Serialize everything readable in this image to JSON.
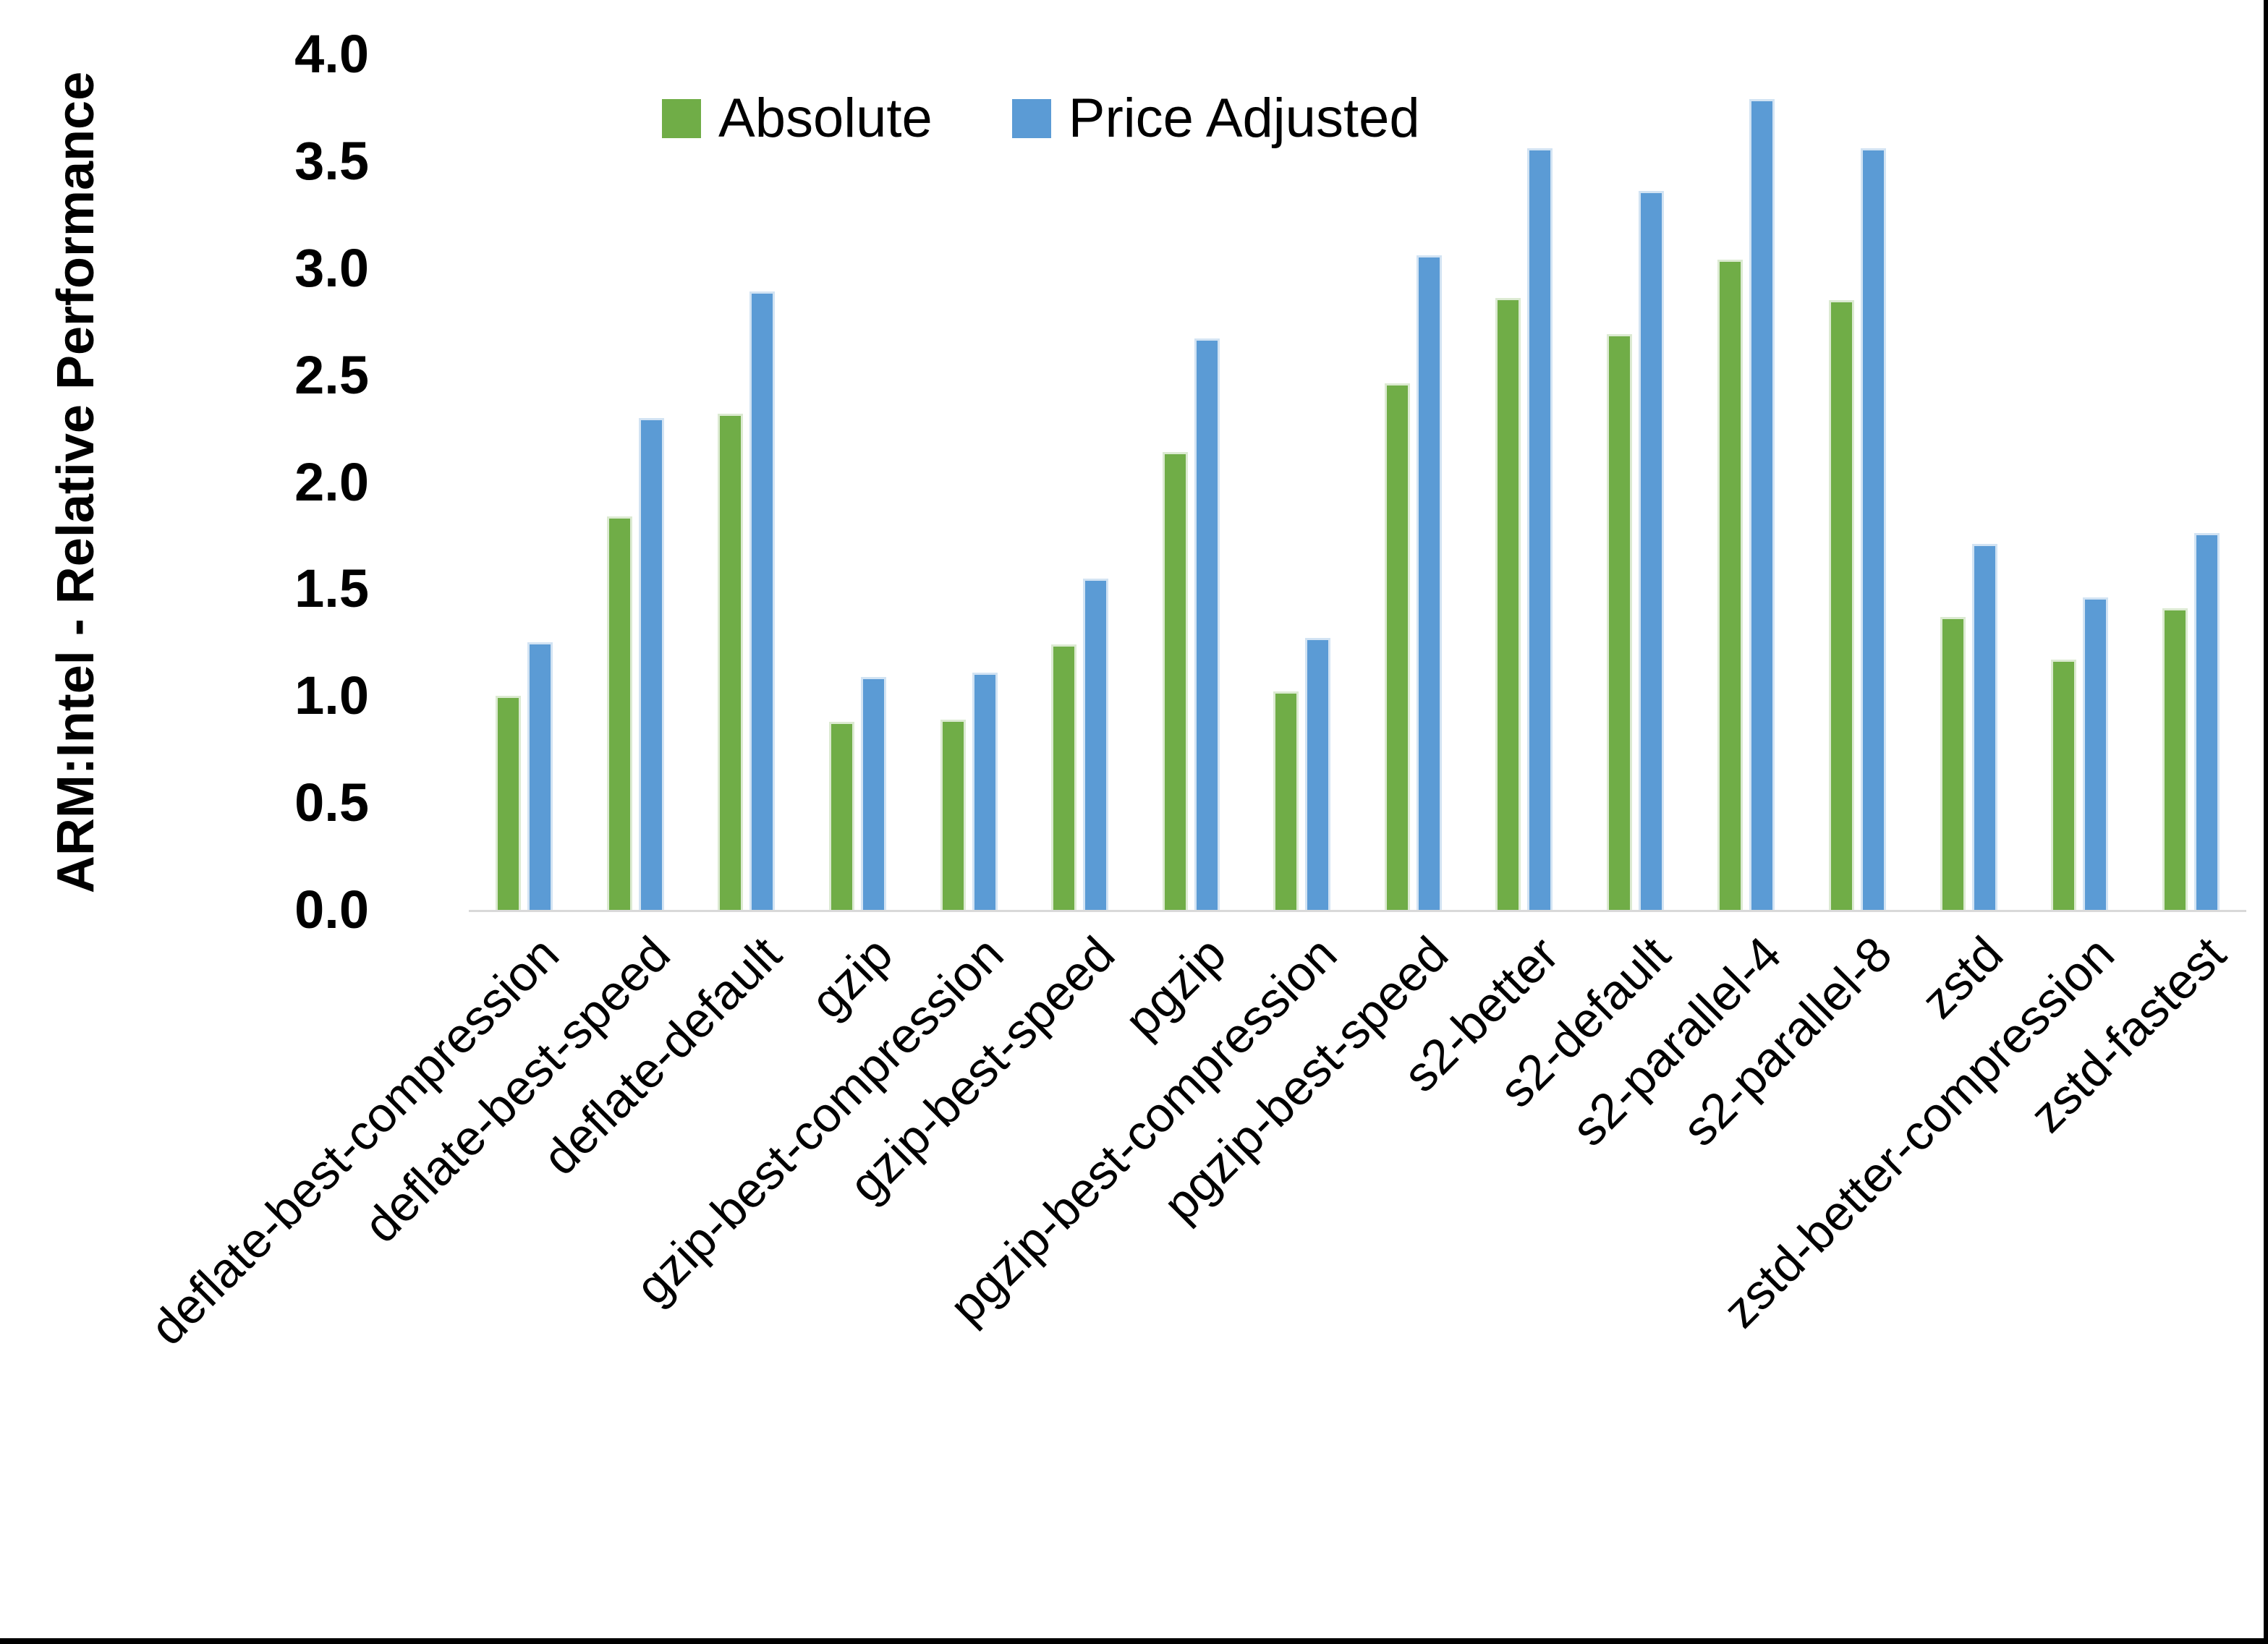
{
  "figure": {
    "background": "#ffffff",
    "frame_border_color": "#000000",
    "axis_line_color": "#d9d9d9",
    "y_axis_title": "ARM:Intel - Relative Performance"
  },
  "legend": {
    "position": "top-center",
    "items": [
      {
        "label": "Absolute",
        "color": "#70AD47"
      },
      {
        "label": "Price Adjusted",
        "color": "#5B9BD5"
      }
    ]
  },
  "chart_data": {
    "type": "bar",
    "title": "",
    "xlabel": "",
    "ylabel": "ARM:Intel - Relative Performance",
    "ylim": [
      0,
      4.0
    ],
    "ytick_step": 0.5,
    "yticks": [
      "0.0",
      "0.5",
      "1.0",
      "1.5",
      "2.0",
      "2.5",
      "3.0",
      "3.5",
      "4.0"
    ],
    "grid": false,
    "legend_position": "top-center",
    "categories": [
      "deflate-best-compression",
      "deflate-best-speed",
      "deflate-default",
      "gzip",
      "gzip-best-compression",
      "gzip-best-speed",
      "pgzip",
      "pgzip-best-compression",
      "pgzip-best-speed",
      "s2-better",
      "s2-default",
      "s2-parallel-4",
      "s2-parallel-8",
      "zstd",
      "zstd-better-compression",
      "zstd-fastest"
    ],
    "series": [
      {
        "name": "Absolute",
        "color": "#70AD47",
        "edge_color": "#dcead2",
        "values": [
          1.0,
          1.84,
          2.32,
          0.88,
          0.89,
          1.24,
          2.14,
          1.02,
          2.46,
          2.86,
          2.69,
          3.04,
          2.85,
          1.37,
          1.17,
          1.41
        ]
      },
      {
        "name": "Price Adjusted",
        "color": "#5B9BD5",
        "edge_color": "#d2e3f3",
        "values": [
          1.25,
          2.3,
          2.89,
          1.09,
          1.11,
          1.55,
          2.67,
          1.27,
          3.06,
          3.56,
          3.36,
          3.79,
          3.56,
          1.71,
          1.46,
          1.76
        ]
      }
    ]
  }
}
